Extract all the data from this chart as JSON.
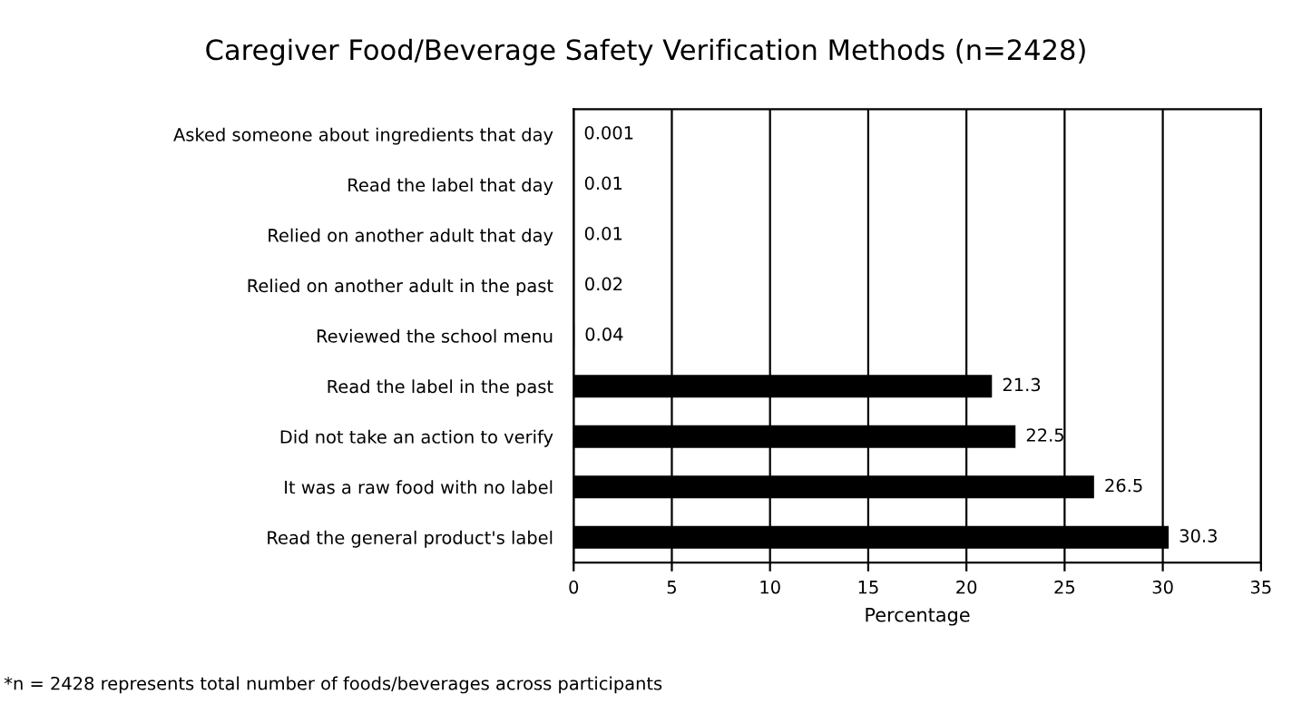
{
  "chart_data": {
    "type": "bar",
    "orientation": "horizontal",
    "title": "Caregiver Food/Beverage Safety Verification Methods (n=2428)",
    "xlabel": "Percentage",
    "categories": [
      "Asked someone about ingredients that day",
      "Read the label that day",
      "Relied on another adult that day",
      "Relied on another adult in the past",
      "Reviewed the school menu",
      "Read the label in the past",
      "Did not take an action to verify",
      "It was a raw food with no label",
      "Read the general product's label"
    ],
    "values": [
      0.001,
      0.01,
      0.01,
      0.02,
      0.04,
      21.3,
      22.5,
      26.5,
      30.3
    ],
    "color": "#000000",
    "xlim": [
      0,
      35
    ],
    "xticks": [
      0,
      5,
      10,
      15,
      20,
      25,
      30,
      35
    ],
    "grid": "x",
    "data_labels": true,
    "legend": false,
    "annotations": [
      "*n = 2428 represents total number of foods/beverages across participants"
    ]
  }
}
